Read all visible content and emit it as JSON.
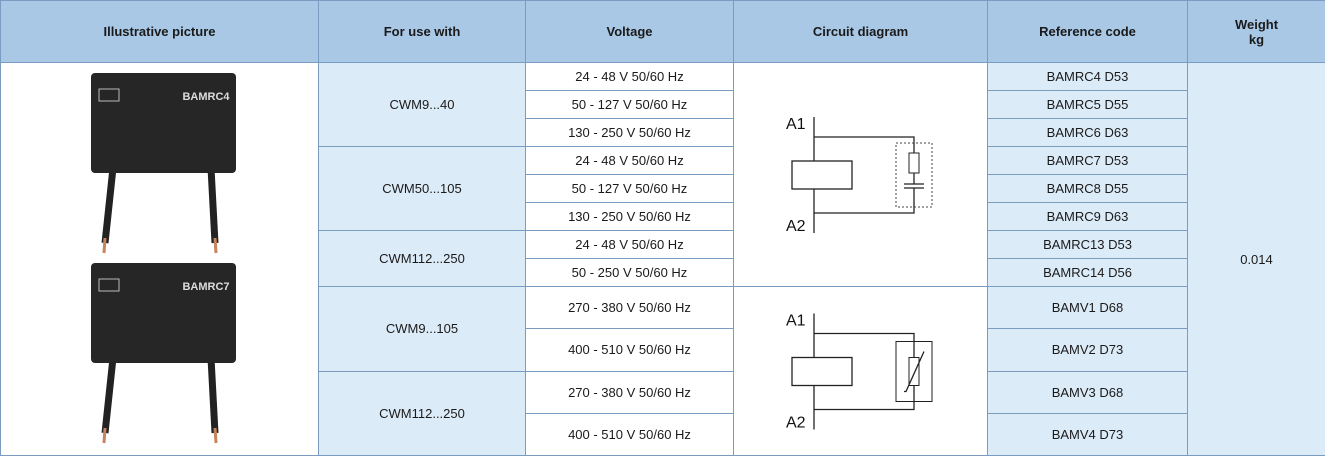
{
  "header": [
    "Illustrative picture",
    "For use with",
    "Voltage",
    "Circuit diagram",
    "Reference code",
    "Weight\nkg"
  ],
  "pictures": [
    "BAMRC4",
    "BAMRC7"
  ],
  "groups": [
    {
      "use": "CWM9...40",
      "rows": [
        {
          "voltage": "24 - 48 V 50/60 Hz",
          "code": "BAMRC4 D53"
        },
        {
          "voltage": "50 - 127 V 50/60 Hz",
          "code": "BAMRC5 D55"
        },
        {
          "voltage": "130 - 250 V 50/60 Hz",
          "code": "BAMRC6 D63"
        }
      ]
    },
    {
      "use": "CWM50...105",
      "rows": [
        {
          "voltage": "24 - 48 V 50/60 Hz",
          "code": "BAMRC7 D53"
        },
        {
          "voltage": "50 - 127 V 50/60 Hz",
          "code": "BAMRC8 D55"
        },
        {
          "voltage": "130 - 250 V 50/60 Hz",
          "code": "BAMRC9 D63"
        }
      ]
    },
    {
      "use": "CWM112...250",
      "rows": [
        {
          "voltage": "24 - 48 V 50/60 Hz",
          "code": "BAMRC13 D53"
        },
        {
          "voltage": "50 - 250 V 50/60 Hz",
          "code": "BAMRC14 D56"
        }
      ]
    },
    {
      "use": "CWM9...105",
      "rows": [
        {
          "voltage": "270 - 380 V 50/60 Hz",
          "code": "BAMV1 D68"
        },
        {
          "voltage": "400 - 510 V 50/60 Hz",
          "code": "BAMV2 D73"
        }
      ]
    },
    {
      "use": "CWM112...250",
      "rows": [
        {
          "voltage": "270 - 380 V 50/60 Hz",
          "code": "BAMV3 D68"
        },
        {
          "voltage": "400 - 510 V 50/60 Hz",
          "code": "BAMV4 D73"
        }
      ]
    }
  ],
  "diagrams": [
    {
      "top": "A1",
      "bottom": "A2"
    },
    {
      "top": "A1",
      "bottom": "A2"
    }
  ],
  "weight": "0.014"
}
